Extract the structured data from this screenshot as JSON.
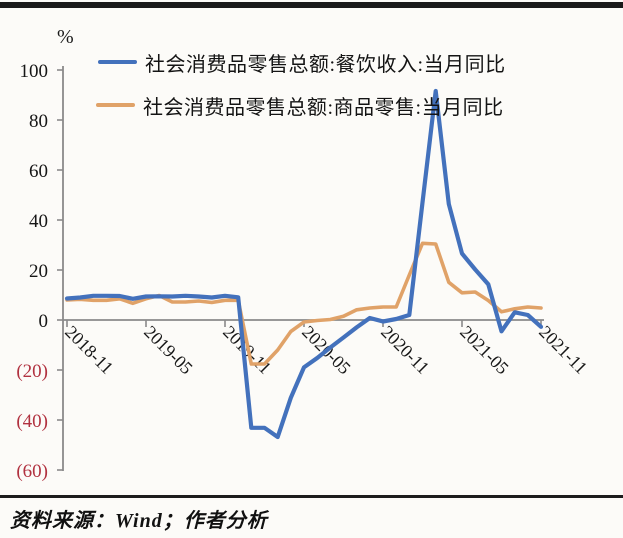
{
  "page": {
    "background": "#FCFBF8",
    "source_note": "资料来源：Wind；作者分析"
  },
  "chart_data": {
    "type": "line",
    "unit_label": "%",
    "x": [
      "2018-11",
      "2018-12",
      "2019-01",
      "2019-02",
      "2019-03",
      "2019-04",
      "2019-05",
      "2019-06",
      "2019-07",
      "2019-08",
      "2019-09",
      "2019-10",
      "2019-11",
      "2019-12",
      "2020-01",
      "2020-02",
      "2020-03",
      "2020-04",
      "2020-05",
      "2020-06",
      "2020-07",
      "2020-08",
      "2020-09",
      "2020-10",
      "2020-11",
      "2020-12",
      "2021-01",
      "2021-02",
      "2021-03",
      "2021-04",
      "2021-05",
      "2021-06",
      "2021-07",
      "2021-08",
      "2021-09",
      "2021-10",
      "2021-11"
    ],
    "x_tick_labels": [
      "2018-11",
      "2019-05",
      "2019-11",
      "2020-05",
      "2020-11",
      "2021-05",
      "2021-11"
    ],
    "series": [
      {
        "name": "社会消费品零售总额:餐饮收入:当月同比",
        "color": "#4371BC",
        "values": [
          8.6,
          9.0,
          9.7,
          9.7,
          9.6,
          8.5,
          9.4,
          9.5,
          9.4,
          9.7,
          9.4,
          9.0,
          9.7,
          9.1,
          -43.1,
          -43.1,
          -46.8,
          -31.1,
          -18.9,
          -15.2,
          -11.0,
          -7.0,
          -2.9,
          0.8,
          -0.6,
          0.4,
          2.0,
          47.0,
          91.6,
          46.4,
          26.6,
          20.2,
          14.3,
          -4.5,
          3.1,
          2.0,
          -2.7
        ]
      },
      {
        "name": "社会消费品零售总额:商品零售:当月同比",
        "color": "#E0A268",
        "values": [
          8.0,
          8.3,
          7.9,
          7.9,
          8.5,
          6.7,
          8.5,
          9.8,
          7.2,
          7.2,
          7.6,
          7.0,
          7.9,
          7.9,
          -17.6,
          -17.6,
          -12.0,
          -4.6,
          -0.8,
          -0.2,
          0.2,
          1.5,
          4.1,
          4.8,
          5.2,
          5.2,
          18.0,
          30.7,
          30.4,
          15.1,
          10.9,
          11.2,
          7.8,
          3.3,
          4.5,
          5.2,
          4.8
        ]
      }
    ],
    "ylim": [
      -60,
      100
    ],
    "y_ticks": [
      100,
      80,
      60,
      40,
      20,
      0,
      -20,
      -40,
      -60
    ],
    "negative_label_style": "parentheses",
    "negative_label_color": "#B13240",
    "axis_color": "#8A8A8A",
    "tick_label_color": "#161616",
    "grid": false,
    "legend_position": "top-left"
  }
}
